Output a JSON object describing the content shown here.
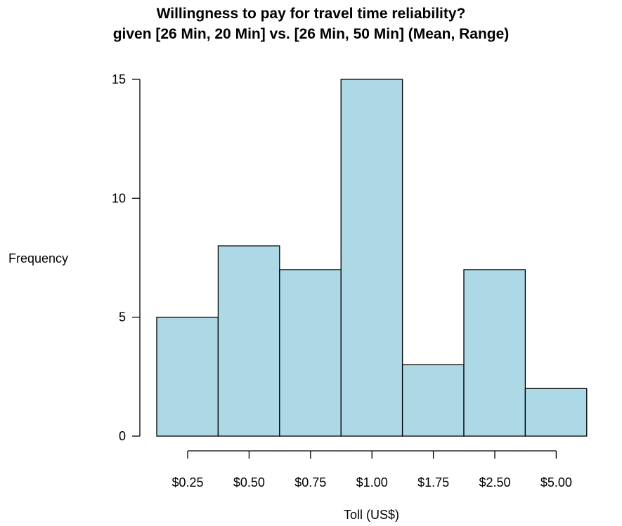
{
  "chart_data": {
    "type": "bar",
    "title": "Willingness to pay for travel time reliability?",
    "subtitle": "given [26 Min, 20 Min] vs. [26 Min, 50 Min] (Mean, Range)",
    "xlabel": "Toll (US$)",
    "ylabel": "Frequency",
    "categories": [
      "$0.25",
      "$0.50",
      "$0.75",
      "$1.00",
      "$1.75",
      "$2.50",
      "$5.00"
    ],
    "values": [
      5,
      8,
      7,
      15,
      3,
      7,
      2
    ],
    "y_ticks": [
      "0",
      "5",
      "10",
      "15"
    ],
    "ylim": [
      0,
      15
    ],
    "grid": false,
    "legend": "none",
    "bar_color": "#add8e6",
    "edge_color": "#000000"
  }
}
